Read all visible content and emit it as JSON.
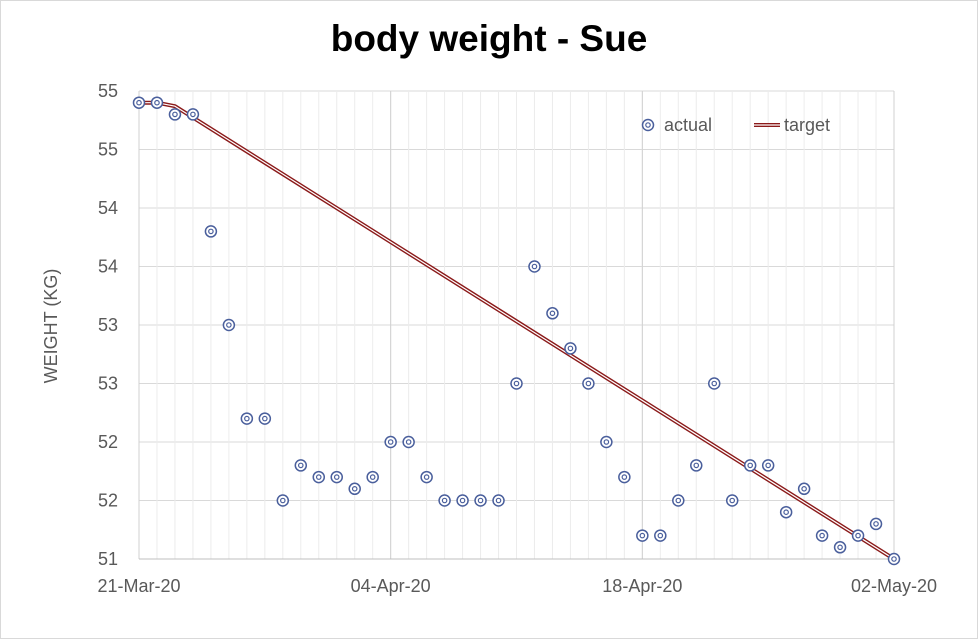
{
  "chart_data": {
    "type": "scatter",
    "title": "body weight - Sue",
    "xlabel": "",
    "ylabel": "WEIGHT (KG)",
    "x_ticks": [
      "21-Mar-20",
      "04-Apr-20",
      "18-Apr-20",
      "02-May-20"
    ],
    "x_start": "2020-03-21",
    "x_end": "2020-05-02",
    "y_tick_labels": [
      "51",
      "52",
      "52",
      "53",
      "53",
      "54",
      "54",
      "55",
      "55"
    ],
    "ylim": [
      51,
      55
    ],
    "grid": true,
    "legend_position": "top-right",
    "series": [
      {
        "name": "actual",
        "kind": "markers",
        "color": "#4a5f9c",
        "x": [
          "2020-03-21",
          "2020-03-22",
          "2020-03-23",
          "2020-03-24",
          "2020-03-25",
          "2020-03-26",
          "2020-03-27",
          "2020-03-28",
          "2020-03-29",
          "2020-03-30",
          "2020-03-31",
          "2020-04-01",
          "2020-04-02",
          "2020-04-03",
          "2020-04-04",
          "2020-04-05",
          "2020-04-06",
          "2020-04-07",
          "2020-04-08",
          "2020-04-09",
          "2020-04-10",
          "2020-04-11",
          "2020-04-12",
          "2020-04-13",
          "2020-04-14",
          "2020-04-15",
          "2020-04-16",
          "2020-04-17",
          "2020-04-18",
          "2020-04-19",
          "2020-04-20",
          "2020-04-21",
          "2020-04-22",
          "2020-04-23",
          "2020-04-24",
          "2020-04-25",
          "2020-04-26",
          "2020-04-27",
          "2020-04-28",
          "2020-04-29",
          "2020-04-30",
          "2020-05-01",
          "2020-05-02"
        ],
        "values": [
          54.9,
          54.9,
          54.8,
          54.8,
          53.8,
          53.0,
          52.2,
          52.2,
          51.5,
          51.8,
          51.7,
          51.7,
          51.6,
          51.7,
          52.0,
          52.0,
          51.7,
          51.5,
          51.5,
          51.5,
          51.5,
          52.5,
          53.5,
          53.1,
          52.8,
          52.5,
          52.0,
          51.7,
          51.2,
          51.2,
          51.5,
          51.8,
          52.5,
          51.5,
          51.8,
          51.8,
          51.4,
          51.6,
          51.2,
          51.1,
          51.2,
          51.3,
          51.0
        ]
      },
      {
        "name": "target",
        "kind": "line",
        "color": "#8b1a1a",
        "x": [
          "2020-03-21",
          "2020-03-22",
          "2020-03-23",
          "2020-05-02"
        ],
        "values": [
          54.9,
          54.9,
          54.87,
          51.0
        ]
      }
    ]
  }
}
